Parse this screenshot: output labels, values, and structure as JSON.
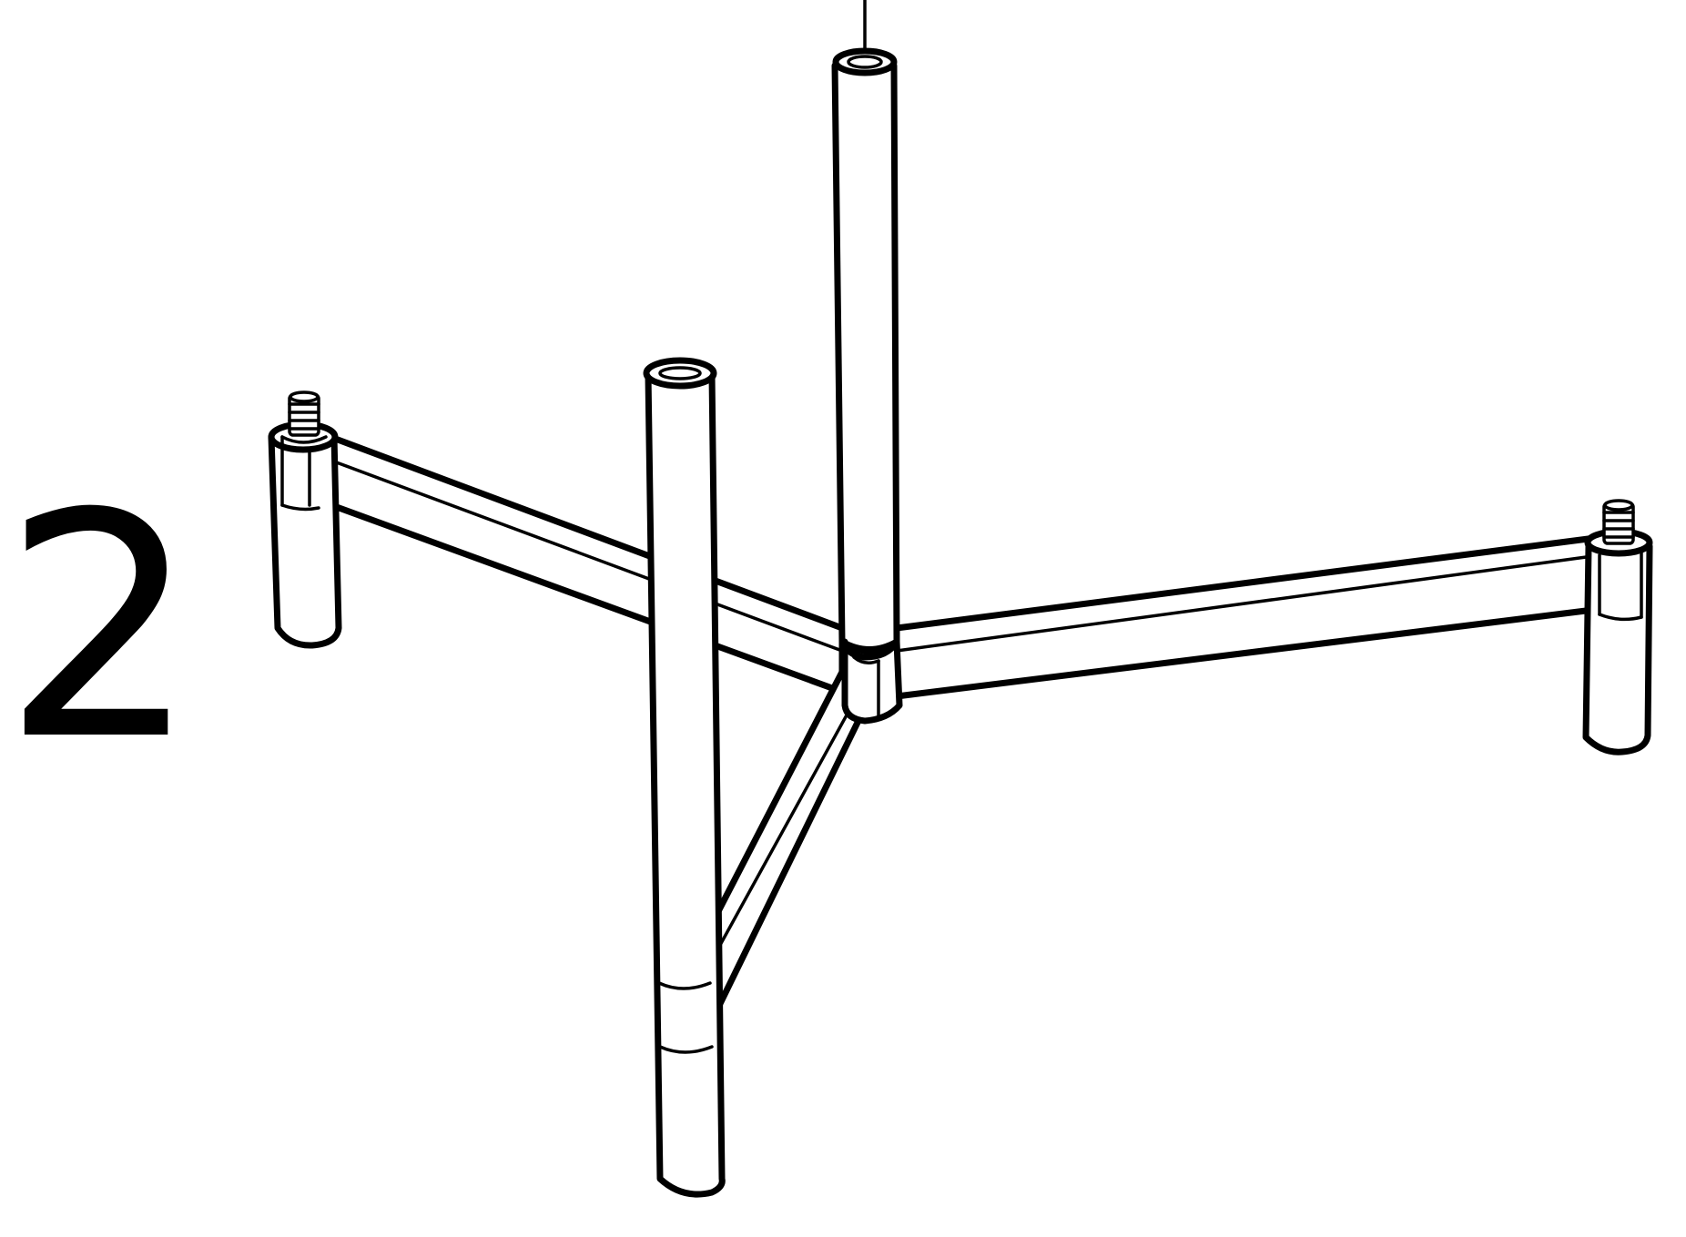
{
  "step": {
    "number": "2"
  },
  "colors": {
    "line": "#000000",
    "background": "#ffffff"
  },
  "parts": [
    "left-arm",
    "right-arm",
    "front-arm",
    "left-foot",
    "right-foot",
    "front-post",
    "center-post",
    "hub",
    "left-threaded-bolt",
    "right-threaded-bolt"
  ]
}
